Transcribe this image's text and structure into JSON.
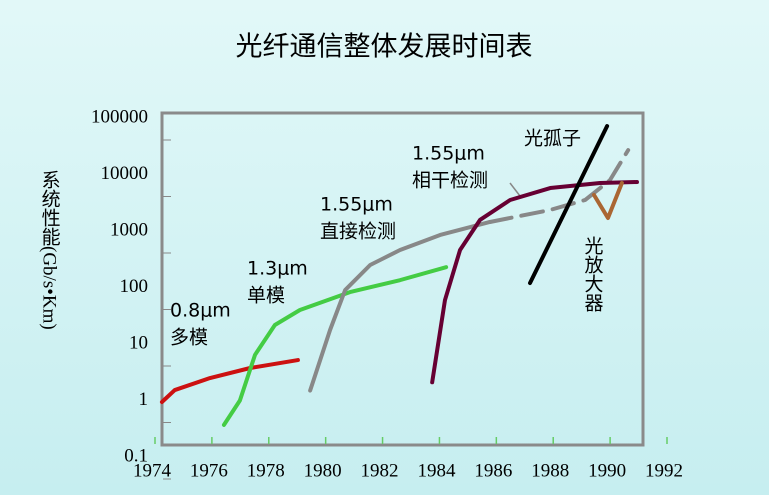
{
  "chart_data": {
    "type": "line",
    "title": "光纤通信整体发展时间表",
    "y_label": "系统性能(Gb/s•Km)",
    "log_y": true,
    "xlim": [
      1974,
      1992
    ],
    "xticks": [
      1974,
      1976,
      1978,
      1980,
      1982,
      1984,
      1986,
      1988,
      1990,
      1992
    ],
    "ylim": [
      0.1,
      100000
    ],
    "yticks": [
      0.1,
      1,
      10,
      100,
      1000,
      10000,
      100000
    ],
    "series": [
      {
        "color": "#cc1111",
        "dashed": false,
        "x": [
          1974.35,
          1974.8,
          1976.04,
          1977.45,
          1979.13
        ],
        "values": [
          0.94,
          1.53,
          2.5,
          3.76,
          5.2
        ]
      },
      {
        "color": "#44cc44",
        "dashed": false,
        "x": [
          1976.53,
          1977.09,
          1977.62,
          1978.32,
          1979.2,
          1980.96,
          1982.72,
          1984.34
        ],
        "values": [
          0.37,
          1.0,
          6.4,
          21.7,
          40,
          83,
          135,
          229
        ]
      },
      {
        "color": "#888888",
        "dashed": false,
        "x": [
          1979.56,
          1980.26,
          1980.79,
          1981.67,
          1982.72,
          1984.13,
          1985.88
        ],
        "values": [
          1.5,
          17.7,
          90,
          250,
          461,
          851,
          1444
        ]
      },
      {
        "color": "#888888",
        "dashed": true,
        "x": [
          1985.88,
          1988.0,
          1989.23,
          1990.1,
          1990.74
        ],
        "values": [
          1444,
          2360,
          3540,
          7950,
          27000
        ]
      },
      {
        "color": "#660033",
        "dashed": false,
        "x": [
          1983.85,
          1984.3,
          1984.83,
          1985.53,
          1986.59,
          1988.0,
          1989.75,
          1991.05
        ],
        "values": [
          2.1,
          60,
          461,
          1567,
          3540,
          5760,
          7080,
          7360
        ]
      },
      {
        "color": "#000000",
        "dashed": false,
        "x": [
          1987.29,
          1990.0
        ],
        "values": [
          120,
          72000
        ]
      },
      {
        "color": "#aa6633",
        "dashed": false,
        "x": [
          1989.54,
          1990.03,
          1990.52
        ],
        "values": [
          4340,
          1700,
          7080
        ]
      }
    ],
    "annotations": [
      "0.8μm",
      "多模",
      "1.3μm",
      "单模",
      "1.55μm",
      "直接检测",
      "1.55μm",
      "相干检测",
      "光孤子",
      "光放大器"
    ]
  }
}
